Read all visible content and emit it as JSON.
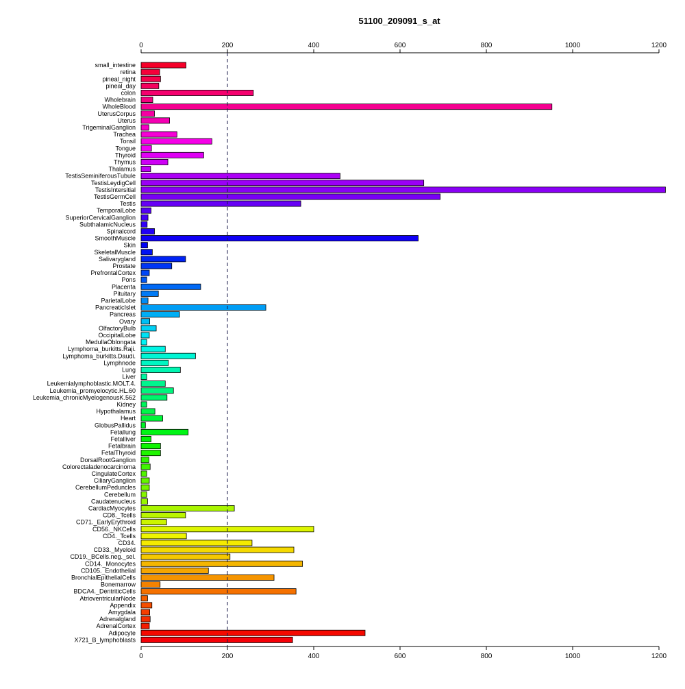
{
  "chart_data": {
    "type": "bar",
    "orientation": "horizontal",
    "title": "51100_209091_s_at",
    "xlim": [
      0,
      1200
    ],
    "x_ticks": [
      0,
      200,
      400,
      600,
      800,
      1000,
      1200
    ],
    "x_tick_labels": [
      "0",
      "200",
      "400",
      "600",
      "800",
      "1000",
      "1200"
    ],
    "axis_positions": [
      "top",
      "bottom"
    ],
    "reference_line": {
      "x": 200,
      "style": "dashed"
    },
    "grid": false,
    "categories": [
      "small_intestine",
      "retina",
      "pineal_night",
      "pineal_day",
      "colon",
      "Wholebrain",
      "WholeBlood",
      "UterusCorpus",
      "Uterus",
      "TrigeminalGanglion",
      "Trachea",
      "Tonsil",
      "Tongue",
      "Thyroid",
      "Thymus",
      "Thalamus",
      "TestisSeminiferousTubule",
      "TestisLeydigCell",
      "TestisIntersitial",
      "TestisGermCell",
      "Testis",
      "TemporalLobe",
      "SuperiorCervicalGanglion",
      "SubthalamicNucleus",
      "Spinalcord",
      "SmoothMuscle",
      "Skin",
      "SkeletalMuscle",
      "Salivarygland",
      "Prostate",
      "PrefrontalCortex",
      "Pons",
      "Placenta",
      "Pituitary",
      "ParietalLobe",
      "PancreaticIslet",
      "Pancreas",
      "Ovary",
      "OlfactoryBulb",
      "OccipitalLobe",
      "MedullaOblongata",
      "Lymphoma_burkitts.Raji.",
      "Lymphoma_burkitts.Daudi.",
      "Lymphnode",
      "Lung",
      "Liver",
      "Leukemialymphoblastic.MOLT.4.",
      "Leukemia_promyelocytic.HL.60",
      "Leukemia_chronicMyelogenousK.562",
      "Kidney",
      "Hypothalamus",
      "Heart",
      "GlobusPallidus",
      "Fetallung",
      "Fetalliver",
      "Fetalbrain",
      "FetalThyroid",
      "DorsalRootGanglion",
      "Colorectaladenocarcinoma",
      "CingulateCortex",
      "CiliaryGanglion",
      "CerebellumPeduncles",
      "Cerebellum",
      "Caudatenucleus",
      "CardiacMyocytes",
      "CD8._Tcells",
      "CD71._EarlyErythroid",
      "CD56._NKCells",
      "CD4._Tcells",
      "CD34.",
      "CD33._Myeloid",
      "CD19._BCells.neg._sel.",
      "CD14._Monocytes",
      "CD105._Endothelial",
      "BronchialEpithelialCells",
      "Bonemarrow",
      "BDCA4._DentriticCells",
      "AtrioventricularNode",
      "Appendix",
      "Amygdala",
      "Adrenalgland",
      "AdrenalCortex",
      "Adipocyte",
      "X721_B_lymphoblasts"
    ],
    "values": [
      104,
      43,
      45,
      41,
      260,
      27,
      952,
      31,
      66,
      18,
      83,
      164,
      24,
      145,
      62,
      22,
      461,
      655,
      1215,
      693,
      370,
      23,
      16,
      14,
      31,
      642,
      15,
      26,
      103,
      71,
      19,
      13,
      138,
      40,
      16,
      289,
      89,
      20,
      35,
      19,
      13,
      56,
      126,
      63,
      91,
      13,
      56,
      75,
      60,
      13,
      32,
      50,
      10,
      109,
      23,
      45,
      45,
      18,
      21,
      13,
      19,
      19,
      13,
      15,
      216,
      103,
      59,
      400,
      105,
      257,
      354,
      206,
      374,
      156,
      308,
      44,
      359,
      15,
      25,
      20,
      21,
      19,
      519,
      351
    ]
  }
}
